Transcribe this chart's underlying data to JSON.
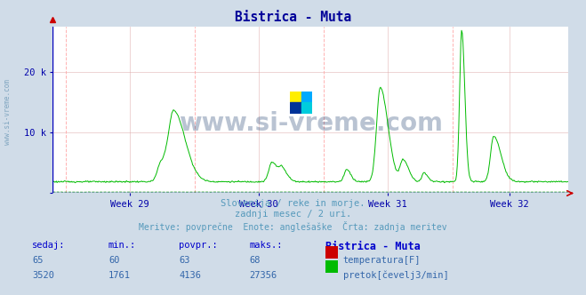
{
  "title": "Bistrica - Muta",
  "title_color": "#000099",
  "bg_color": "#d0dce8",
  "plot_bg_color": "#ffffff",
  "grid_color": "#ddaaaa",
  "axis_color": "#0000bb",
  "tick_color": "#0000aa",
  "text_color": "#5599bb",
  "flow_color": "#00bb00",
  "temp_color": "#cc0000",
  "dashed_color": "#009900",
  "vline_color": "#ffaaaa",
  "week_labels": [
    "Week 29",
    "Week 30",
    "Week 31",
    "Week 32"
  ],
  "subtitle1": "Slovenija / reke in morje.",
  "subtitle2": "zadnji mesec / 2 uri.",
  "subtitle3": "Meritve: povprečne  Enote: anglešaške  Črta: zadnja meritev",
  "footer_col1_label": "sedaj:",
  "footer_col2_label": "min.:",
  "footer_col3_label": "povpr.:",
  "footer_col4_label": "maks.:",
  "footer_col5_label": "Bistrica - Muta",
  "footer_temp_vals": [
    "65",
    "60",
    "63",
    "68"
  ],
  "footer_flow_vals": [
    "3520",
    "1761",
    "4136",
    "27356"
  ],
  "footer_temp_label": "temperatura[F]",
  "footer_flow_label": "pretok[čevelj3/min]",
  "ylim_max": 27500,
  "ytick_vals": [
    0,
    10000,
    20000
  ],
  "ytick_labels": [
    "",
    "10 k",
    "20 k"
  ],
  "watermark_text": "www.si-vreme.com",
  "watermark_color": "#1a3a6a",
  "watermark_alpha": 0.3,
  "left_text": "www.si-vreme.com"
}
